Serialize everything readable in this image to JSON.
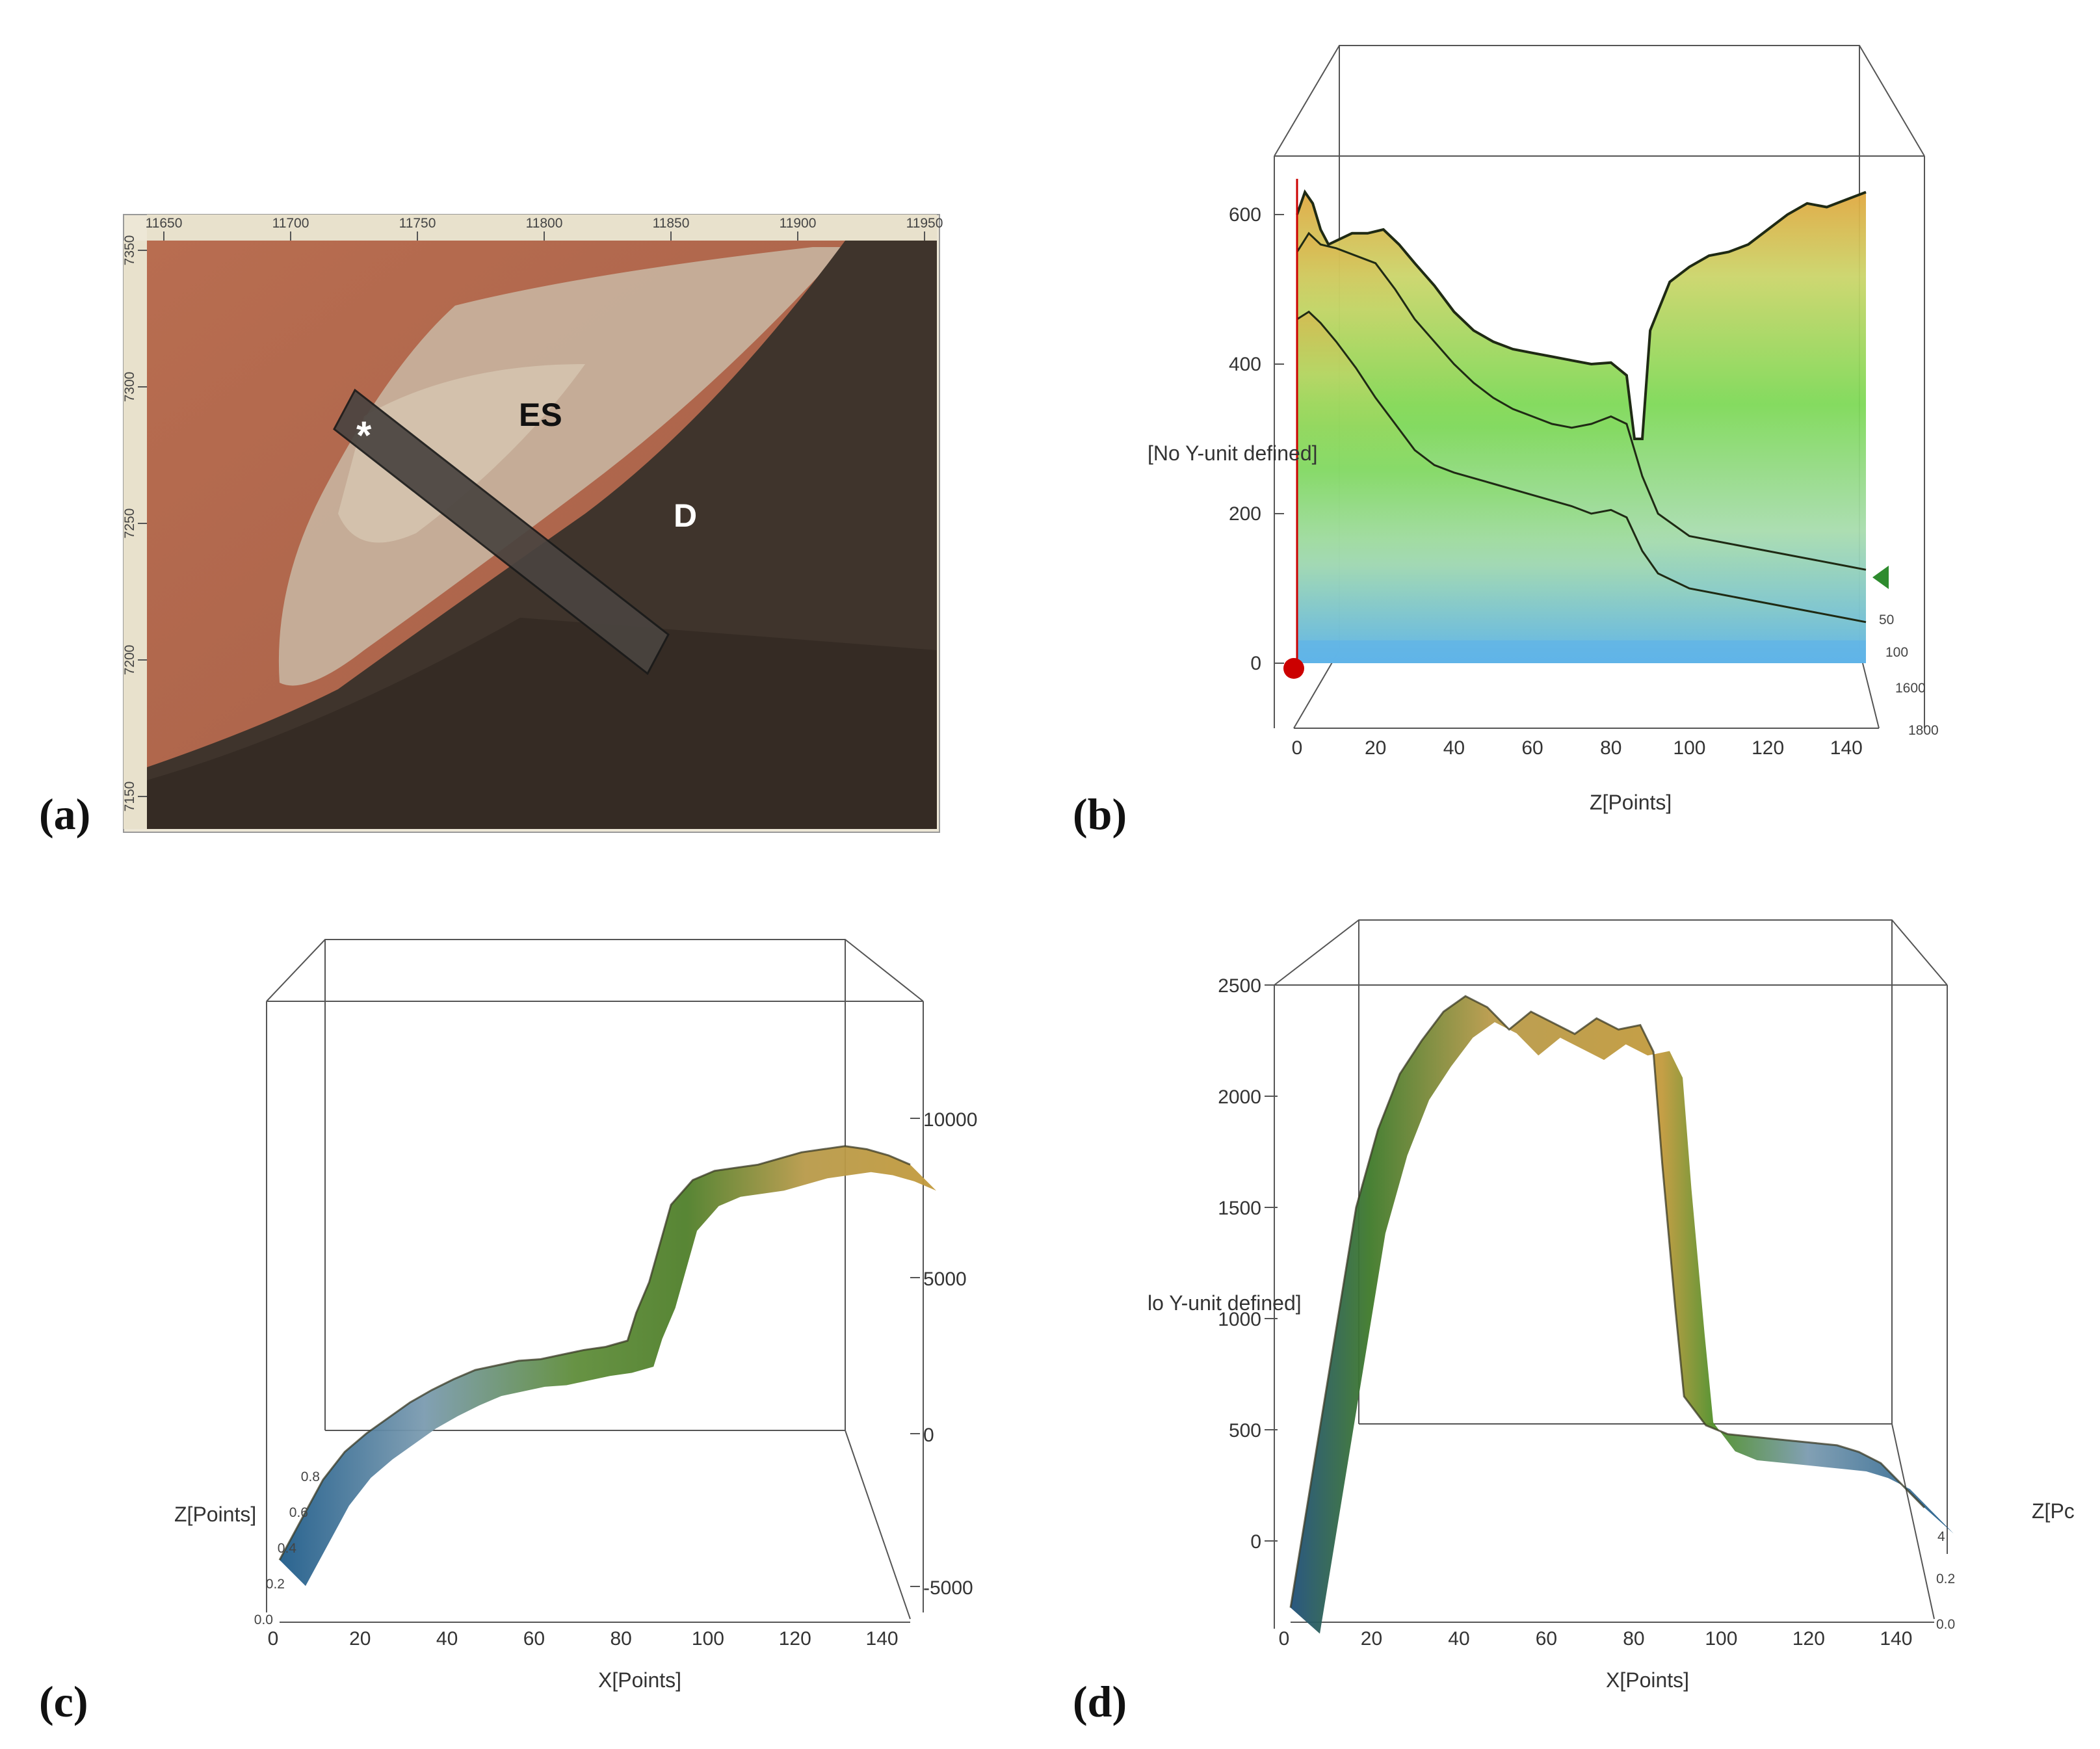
{
  "panels": {
    "a": {
      "label": "(a)",
      "top_ticks": [
        "11650",
        "11700",
        "11750",
        "11800",
        "11850",
        "11900",
        "11950"
      ],
      "left_ticks": [
        "7350",
        "7300",
        "7250",
        "7200",
        "7150"
      ],
      "regions": [
        "ES",
        "D"
      ],
      "marker": "*",
      "colors": {
        "es_surface": "#b06a50",
        "crater_floor": "#8a7f72",
        "dark_plain": "#3f342c"
      }
    },
    "b": {
      "label": "(b)",
      "y_ticks": [
        "600",
        "400",
        "200",
        "0"
      ],
      "x_ticks": [
        "0",
        "20",
        "40",
        "60",
        "80",
        "100",
        "120",
        "140"
      ],
      "depth_ticks": [
        "50",
        "100",
        "1600",
        "1800"
      ],
      "ylabel": "[No Y-unit defined]",
      "xlabel": "Z[Points]",
      "colors": {
        "low": "#5fb4e8",
        "mid": "#7ed957",
        "high": "#d4a445",
        "marker": "#cc0000",
        "arrow": "#2e8b2e"
      }
    },
    "c": {
      "label": "(c)",
      "y_ticks": [
        "10000",
        "5000",
        "0",
        "-5000"
      ],
      "x_ticks": [
        "0",
        "20",
        "40",
        "60",
        "80",
        "100",
        "120",
        "140"
      ],
      "z_ticks": [
        "0.0",
        "0.2",
        "0.4",
        "0.6",
        "0.8"
      ],
      "zlabel": "Z[Points]",
      "xlabel": "X[Points]",
      "colors": {
        "low": "#1f5c8a",
        "mid": "#4f8f2a",
        "high": "#c29a3c"
      }
    },
    "d": {
      "label": "(d)",
      "y_ticks": [
        "2500",
        "2000",
        "1500",
        "1000",
        "500",
        "0"
      ],
      "x_ticks": [
        "0",
        "20",
        "40",
        "60",
        "80",
        "100",
        "120",
        "140"
      ],
      "z_ticks": [
        "4",
        "0.2",
        "0.0"
      ],
      "ylabel": "lo Y-unit defined]",
      "xlabel": "X[Points]",
      "zlabel": "Z[Pc",
      "colors": {
        "low": "#1f5c8a",
        "mid": "#4f8f2a",
        "high": "#c29a3c"
      }
    }
  },
  "chart_data": [
    {
      "type": "area",
      "panel": "b",
      "x_range": [
        0,
        145
      ],
      "ylim": [
        0,
        650
      ],
      "series": [
        {
          "x": [
            0,
            2,
            4,
            6,
            8,
            10,
            14,
            18,
            22,
            26,
            30,
            35,
            40,
            45,
            50,
            55,
            60,
            65,
            70,
            75,
            80,
            84,
            86,
            88,
            90,
            95,
            100,
            105,
            110,
            115,
            120,
            125,
            130,
            135,
            140,
            145
          ],
          "values": [
            600,
            630,
            615,
            580,
            560,
            565,
            575,
            575,
            580,
            560,
            535,
            505,
            470,
            445,
            430,
            420,
            415,
            410,
            405,
            400,
            402,
            385,
            300,
            300,
            445,
            510,
            530,
            545,
            550,
            560,
            580,
            600,
            615,
            610,
            620,
            630
          ]
        },
        {
          "x": [
            0,
            3,
            6,
            10,
            15,
            20,
            25,
            30,
            35,
            40,
            45,
            50,
            55,
            60,
            65,
            70,
            75,
            80,
            84,
            88,
            92,
            100,
            110,
            120,
            130,
            140,
            145
          ],
          "values": [
            550,
            575,
            560,
            555,
            545,
            535,
            500,
            460,
            430,
            400,
            375,
            355,
            340,
            330,
            320,
            315,
            320,
            330,
            320,
            250,
            200,
            170,
            160,
            150,
            140,
            130,
            125
          ]
        },
        {
          "x": [
            0,
            3,
            6,
            10,
            15,
            20,
            25,
            30,
            35,
            40,
            50,
            60,
            70,
            75,
            80,
            84,
            88,
            92,
            100,
            110,
            120,
            130,
            140,
            145
          ],
          "values": [
            460,
            470,
            455,
            430,
            395,
            355,
            320,
            285,
            265,
            255,
            240,
            225,
            210,
            200,
            205,
            195,
            150,
            120,
            100,
            90,
            80,
            70,
            60,
            55
          ]
        }
      ]
    },
    {
      "type": "area",
      "panel": "c",
      "x_range": [
        0,
        145
      ],
      "ylim": [
        -5000,
        10000
      ],
      "series": [
        {
          "x": [
            0,
            5,
            10,
            15,
            20,
            25,
            30,
            35,
            40,
            45,
            50,
            55,
            60,
            65,
            70,
            75,
            80,
            82,
            85,
            88,
            90,
            95,
            100,
            105,
            110,
            115,
            120,
            125,
            130,
            135,
            140,
            145
          ],
          "values": [
            -4300,
            -3000,
            -1700,
            -800,
            -200,
            300,
            800,
            1200,
            1550,
            1850,
            2000,
            2150,
            2200,
            2350,
            2500,
            2600,
            2800,
            3700,
            4700,
            6200,
            7200,
            8000,
            8300,
            8400,
            8500,
            8700,
            8900,
            9000,
            9100,
            9000,
            8800,
            8500
          ]
        }
      ]
    },
    {
      "type": "area",
      "panel": "d",
      "x_range": [
        0,
        145
      ],
      "ylim": [
        -300,
        2600
      ],
      "series": [
        {
          "x": [
            0,
            5,
            10,
            15,
            20,
            25,
            30,
            35,
            40,
            45,
            50,
            55,
            60,
            65,
            70,
            75,
            80,
            83,
            85,
            88,
            90,
            95,
            100,
            105,
            110,
            115,
            120,
            125,
            130,
            135,
            140,
            145
          ],
          "values": [
            -300,
            300,
            900,
            1500,
            1850,
            2100,
            2250,
            2380,
            2450,
            2400,
            2300,
            2380,
            2330,
            2280,
            2350,
            2300,
            2320,
            2200,
            1700,
            1050,
            650,
            520,
            480,
            470,
            460,
            450,
            440,
            430,
            400,
            350,
            250,
            150
          ]
        }
      ]
    }
  ]
}
